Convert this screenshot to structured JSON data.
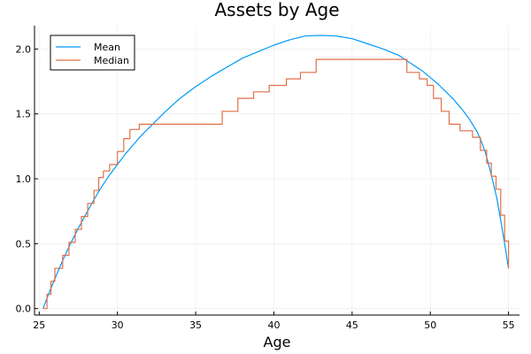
{
  "chart_data": {
    "type": "line",
    "title": "Assets by Age",
    "xlabel": "Age",
    "ylabel": "",
    "xlim": [
      24.7,
      55.7
    ],
    "ylim": [
      -0.05,
      2.18
    ],
    "xticks": [
      25,
      30,
      35,
      40,
      45,
      50,
      55
    ],
    "yticks": [
      0.0,
      0.5,
      1.0,
      1.5,
      2.0
    ],
    "xtick_labels": [
      "25",
      "30",
      "35",
      "40",
      "45",
      "50",
      "55"
    ],
    "ytick_labels": [
      "0.0",
      "0.5",
      "1.0",
      "1.5",
      "2.0"
    ],
    "grid": true,
    "legend_position": "top-left",
    "series": [
      {
        "name": "Mean",
        "color": "#009af9",
        "step": false,
        "x": [
          25.25,
          25.5,
          26,
          26.5,
          27,
          27.5,
          28,
          28.5,
          29,
          29.5,
          30,
          30.5,
          31,
          31.5,
          32,
          33,
          34,
          35,
          36,
          37,
          38,
          39,
          40,
          41,
          42,
          43,
          44,
          45,
          46,
          47,
          48,
          48.5,
          49,
          49.5,
          50,
          50.5,
          51,
          51.5,
          52,
          52.5,
          53,
          53.25,
          53.5,
          53.75,
          54,
          54.25,
          54.5,
          54.75,
          55
        ],
        "y": [
          0.0,
          0.08,
          0.23,
          0.37,
          0.5,
          0.62,
          0.73,
          0.84,
          0.94,
          1.03,
          1.11,
          1.19,
          1.26,
          1.33,
          1.39,
          1.51,
          1.62,
          1.71,
          1.79,
          1.86,
          1.93,
          1.98,
          2.03,
          2.07,
          2.1,
          2.105,
          2.1,
          2.08,
          2.04,
          2.0,
          1.95,
          1.91,
          1.87,
          1.83,
          1.78,
          1.73,
          1.67,
          1.61,
          1.54,
          1.46,
          1.36,
          1.29,
          1.21,
          1.1,
          0.98,
          0.85,
          0.68,
          0.5,
          0.31
        ]
      },
      {
        "name": "Median",
        "color": "#e26f46",
        "step": true,
        "x": [
          25.25,
          25.5,
          25.75,
          26.0,
          26.5,
          26.9,
          27.3,
          27.7,
          28.1,
          28.5,
          28.8,
          29.1,
          29.5,
          30.0,
          30.4,
          30.8,
          31.4,
          31.5,
          36.7,
          37.7,
          38.7,
          39.7,
          40.8,
          41.7,
          42.7,
          48.2,
          48.5,
          49.3,
          49.8,
          50.2,
          50.7,
          51.2,
          51.9,
          52.7,
          53.2,
          53.6,
          53.9,
          54.2,
          54.5,
          54.75,
          55.0
        ],
        "y": [
          0.0,
          0.11,
          0.21,
          0.31,
          0.41,
          0.51,
          0.61,
          0.71,
          0.81,
          0.91,
          1.01,
          1.06,
          1.11,
          1.21,
          1.31,
          1.38,
          1.42,
          1.42,
          1.52,
          1.62,
          1.67,
          1.72,
          1.77,
          1.82,
          1.92,
          1.92,
          1.82,
          1.77,
          1.72,
          1.62,
          1.52,
          1.42,
          1.37,
          1.32,
          1.22,
          1.12,
          1.02,
          0.92,
          0.72,
          0.52,
          0.31
        ]
      }
    ]
  }
}
